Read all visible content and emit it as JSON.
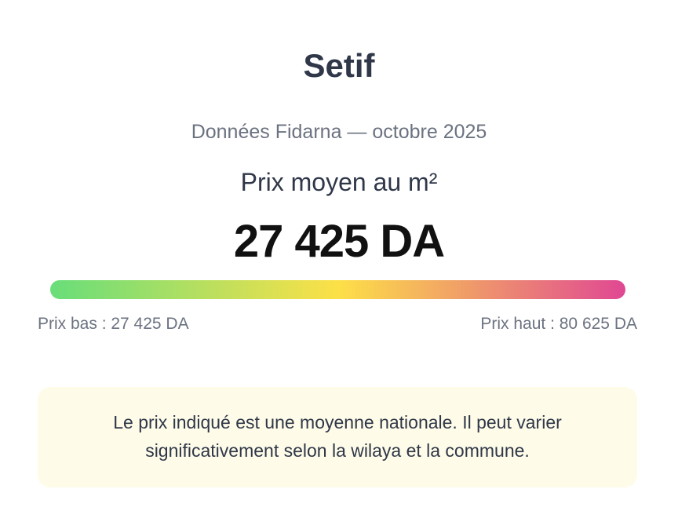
{
  "header": {
    "title": "Setif",
    "subtitle": "Données Fidarna — octobre 2025"
  },
  "price": {
    "label": "Prix moyen au m²",
    "value": "27 425 DA"
  },
  "range": {
    "low_label": "Prix bas : 27 425 DA",
    "high_label": "Prix haut : 80 625 DA",
    "gradient_colors": [
      "#68de7a",
      "#fde047",
      "#e04893"
    ]
  },
  "note": {
    "text": "Le prix indiqué est une moyenne nationale. Il peut varier significativement selon la wilaya et la commune."
  }
}
